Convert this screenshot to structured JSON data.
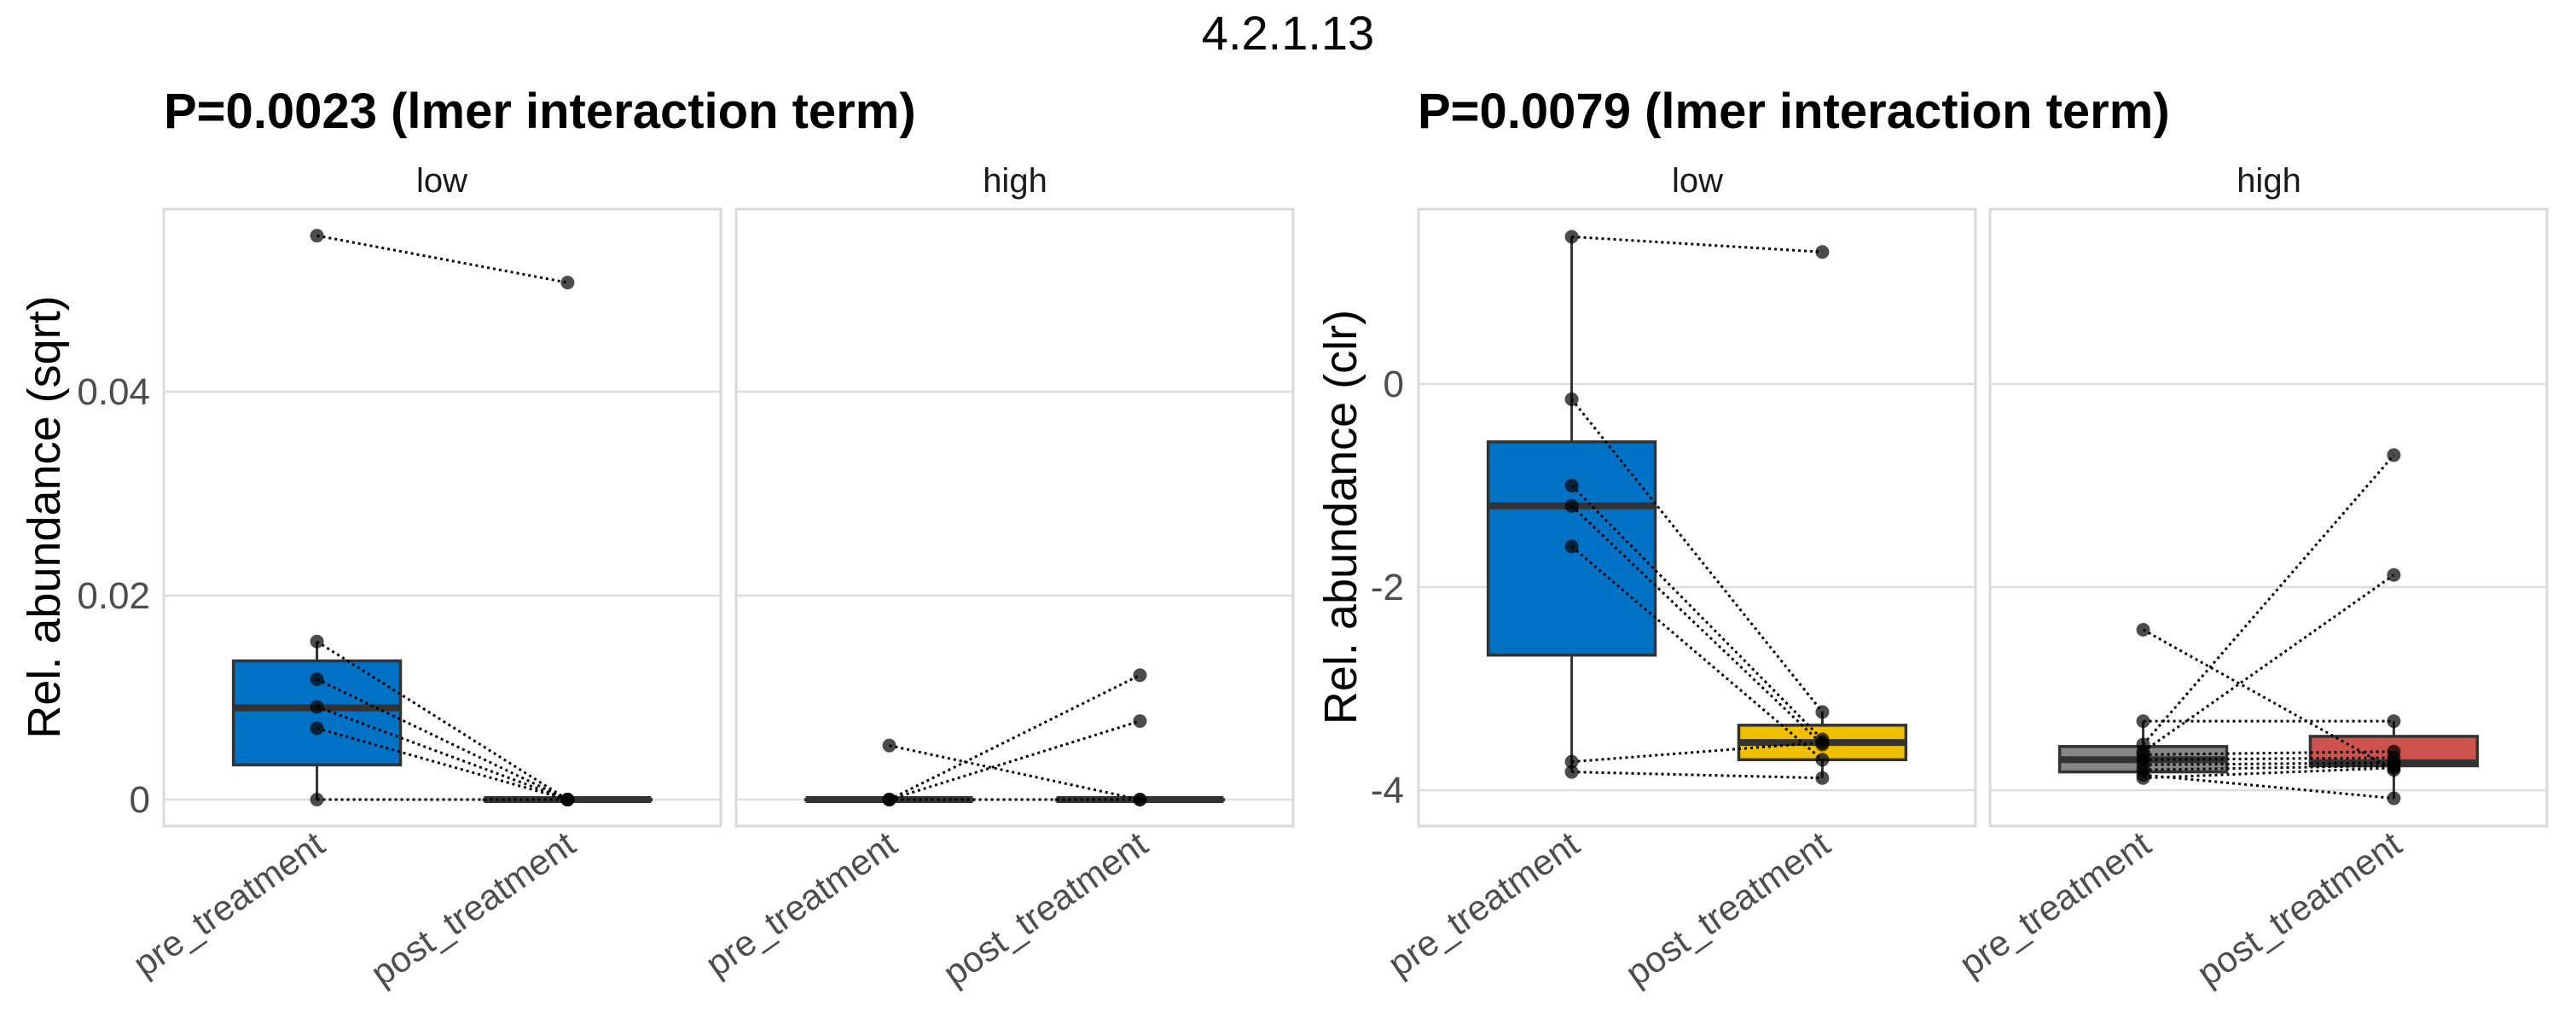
{
  "title": "4.2.1.13",
  "chart_data": [
    {
      "type": "box",
      "title": "P=0.0023 (lmer interaction term)",
      "ylabel": "Rel. abundance (sqrt)",
      "xlabel": "",
      "ylim": [
        -0.0025,
        0.0573
      ],
      "yticks": [
        0,
        0.02,
        0.04
      ],
      "ytick_labels": [
        "0",
        "0.02",
        "0.04"
      ],
      "grid": true,
      "categories": [
        "pre_treatment",
        "post_treatment"
      ],
      "facets": [
        {
          "label": "low",
          "boxes": [
            {
              "category": "pre_treatment",
              "color": "#0072C6",
              "q1": 0.0034,
              "median": 0.009,
              "q3": 0.0136,
              "whisker_low": 0.0,
              "whisker_high": 0.0155
            },
            {
              "category": "post_treatment",
              "color": "#0072C6",
              "q1": 0.0,
              "median": 0.0,
              "q3": 0.0,
              "whisker_low": 0.0,
              "whisker_high": 0.0
            }
          ],
          "pairs": [
            {
              "pre": 0.0553,
              "post": 0.0507
            },
            {
              "pre": 0.0155,
              "post": 0.0
            },
            {
              "pre": 0.0118,
              "post": 0.0
            },
            {
              "pre": 0.0091,
              "post": 0.0
            },
            {
              "pre": 0.007,
              "post": 0.0
            },
            {
              "pre": 0.0,
              "post": 0.0
            }
          ]
        },
        {
          "label": "high",
          "boxes": [
            {
              "category": "pre_treatment",
              "color": "#0072C6",
              "q1": 0.0,
              "median": 0.0,
              "q3": 0.0,
              "whisker_low": 0.0,
              "whisker_high": 0.0
            },
            {
              "category": "post_treatment",
              "color": "#0072C6",
              "q1": 0.0,
              "median": 0.0,
              "q3": 0.0,
              "whisker_low": 0.0,
              "whisker_high": 0.0
            }
          ],
          "pairs": [
            {
              "pre": 0.0053,
              "post": 0.0
            },
            {
              "pre": 0.0,
              "post": 0.0122
            },
            {
              "pre": 0.0,
              "post": 0.0077
            },
            {
              "pre": 0.0,
              "post": 0.0
            }
          ]
        }
      ]
    },
    {
      "type": "box",
      "title": "P=0.0079 (lmer interaction term)",
      "ylabel": "Rel. abundance (clr)",
      "xlabel": "",
      "ylim": [
        -4.3,
        1.65
      ],
      "yticks": [
        -4,
        -2,
        0
      ],
      "ytick_labels": [
        "-4",
        "-2",
        "0"
      ],
      "grid": true,
      "categories": [
        "pre_treatment",
        "post_treatment"
      ],
      "facets": [
        {
          "label": "low",
          "boxes": [
            {
              "category": "pre_treatment",
              "color": "#0072C6",
              "q1": -2.67,
              "median": -1.2,
              "q3": -0.57,
              "whisker_low": -3.82,
              "whisker_high": 1.45
            },
            {
              "category": "post_treatment",
              "color": "#EFC000",
              "q1": -3.7,
              "median": -3.53,
              "q3": -3.36,
              "whisker_low": -3.88,
              "whisker_high": -3.23
            }
          ],
          "pairs": [
            {
              "pre": 1.45,
              "post": 1.3
            },
            {
              "pre": -0.15,
              "post": -3.23
            },
            {
              "pre": -1.0,
              "post": -3.5
            },
            {
              "pre": -1.2,
              "post": -3.55
            },
            {
              "pre": -1.6,
              "post": -3.7
            },
            {
              "pre": -3.72,
              "post": -3.53
            },
            {
              "pre": -3.82,
              "post": -3.88
            }
          ]
        },
        {
          "label": "high",
          "boxes": [
            {
              "category": "pre_treatment",
              "color": "#868686",
              "q1": -3.82,
              "median": -3.7,
              "q3": -3.57,
              "whisker_low": -3.88,
              "whisker_high": -3.32
            },
            {
              "category": "post_treatment",
              "color": "#CD534C",
              "q1": -3.76,
              "median": -3.73,
              "q3": -3.47,
              "whisker_low": -4.08,
              "whisker_high": -3.32
            }
          ],
          "pairs": [
            {
              "pre": -2.42,
              "post": -3.8
            },
            {
              "pre": -3.32,
              "post": -3.32
            },
            {
              "pre": -3.55,
              "post": -0.7
            },
            {
              "pre": -3.62,
              "post": -1.88
            },
            {
              "pre": -3.65,
              "post": -3.62
            },
            {
              "pre": -3.7,
              "post": -3.68
            },
            {
              "pre": -3.75,
              "post": -3.73
            },
            {
              "pre": -3.8,
              "post": -3.76
            },
            {
              "pre": -3.85,
              "post": -4.08
            },
            {
              "pre": -3.88,
              "post": -3.78
            }
          ]
        }
      ]
    }
  ]
}
